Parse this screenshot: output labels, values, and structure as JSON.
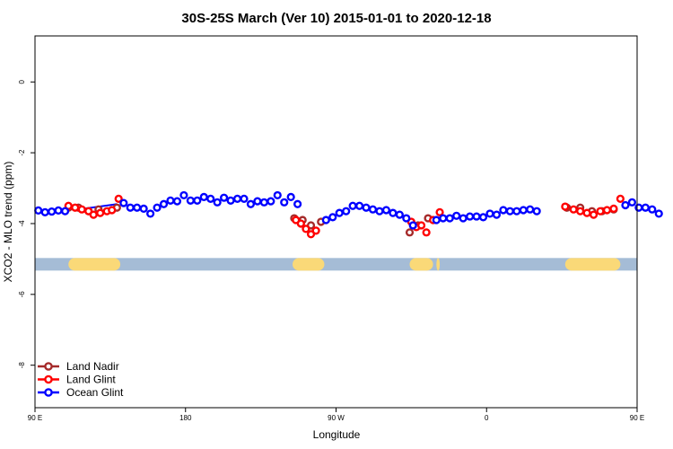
{
  "chart_data": {
    "type": "scatter",
    "title": "30S-25S March (Ver 10)   2015-01-01 to 2020-12-18",
    "xlabel": "Longitude",
    "ylabel": "XCO2 - MLO trend (ppm)",
    "xlim": [
      90,
      450
    ],
    "ylim": [
      -9.2,
      1.3
    ],
    "x_ticks": [
      {
        "value": 90,
        "label": "90 E"
      },
      {
        "value": 180,
        "label": "180"
      },
      {
        "value": 270,
        "label": "90 W"
      },
      {
        "value": 360,
        "label": "0"
      },
      {
        "value": 450,
        "label": "90 E"
      },
      {
        "value": 540,
        "label": "180"
      }
    ],
    "y_ticks": [
      {
        "value": 0,
        "label": "0"
      },
      {
        "value": -2,
        "label": "-2"
      },
      {
        "value": -4,
        "label": "-4"
      },
      {
        "value": -6,
        "label": "-6"
      },
      {
        "value": -8,
        "label": "-8"
      }
    ],
    "grid": false,
    "legend_position": "bottom-left",
    "surface_band": {
      "y": -5.15,
      "ocean_color": "#a5bcd6",
      "land_color": "#fad978",
      "land_ranges": [
        [
          110,
          141
        ],
        [
          244,
          263
        ],
        [
          314,
          328
        ],
        [
          330,
          332
        ],
        [
          407,
          440
        ]
      ]
    },
    "series": [
      {
        "name": "Land Nadir",
        "color": "#a52a2a",
        "points": [
          [
            110,
            -3.55
          ],
          [
            116,
            -3.55
          ],
          [
            122,
            -3.65
          ],
          [
            128,
            -3.6
          ],
          [
            139,
            -3.55
          ],
          [
            245,
            -3.85
          ],
          [
            250,
            -3.9
          ],
          [
            255,
            -4.05
          ],
          [
            261,
            -3.95
          ],
          [
            314,
            -4.25
          ],
          [
            319,
            -4.05
          ],
          [
            325,
            -3.85
          ],
          [
            408,
            -3.55
          ],
          [
            416,
            -3.55
          ],
          [
            423,
            -3.65
          ],
          [
            429,
            -3.65
          ],
          [
            436,
            -3.6
          ]
        ]
      },
      {
        "name": "Land Glint",
        "color": "#ff0000",
        "points": [
          [
            110,
            -3.5
          ],
          [
            114,
            -3.55
          ],
          [
            118,
            -3.6
          ],
          [
            122,
            -3.65
          ],
          [
            125,
            -3.75
          ],
          [
            129,
            -3.7
          ],
          [
            133,
            -3.65
          ],
          [
            136,
            -3.62
          ],
          [
            140,
            -3.3
          ],
          [
            246,
            -3.9
          ],
          [
            249,
            -4.0
          ],
          [
            252,
            -4.15
          ],
          [
            255,
            -4.3
          ],
          [
            258,
            -4.2
          ],
          [
            315,
            -3.95
          ],
          [
            318,
            -4.1
          ],
          [
            321,
            -4.05
          ],
          [
            324,
            -4.25
          ],
          [
            328,
            -3.9
          ],
          [
            332,
            -3.68
          ],
          [
            407,
            -3.52
          ],
          [
            412,
            -3.6
          ],
          [
            416,
            -3.65
          ],
          [
            420,
            -3.7
          ],
          [
            424,
            -3.75
          ],
          [
            428,
            -3.65
          ],
          [
            432,
            -3.62
          ],
          [
            436,
            -3.58
          ],
          [
            440,
            -3.3
          ]
        ]
      },
      {
        "name": "Ocean Glint",
        "color": "#0000ff",
        "points": [
          [
            92,
            -3.63
          ],
          [
            96,
            -3.68
          ],
          [
            100,
            -3.66
          ],
          [
            104,
            -3.63
          ],
          [
            108,
            -3.65
          ],
          [
            143,
            -3.42
          ],
          [
            147,
            -3.55
          ],
          [
            151,
            -3.55
          ],
          [
            155,
            -3.58
          ],
          [
            159,
            -3.72
          ],
          [
            163,
            -3.55
          ],
          [
            167,
            -3.45
          ],
          [
            171,
            -3.35
          ],
          [
            175,
            -3.37
          ],
          [
            179,
            -3.2
          ],
          [
            183,
            -3.35
          ],
          [
            187,
            -3.35
          ],
          [
            191,
            -3.25
          ],
          [
            195,
            -3.3
          ],
          [
            199,
            -3.4
          ],
          [
            203,
            -3.27
          ],
          [
            207,
            -3.35
          ],
          [
            211,
            -3.3
          ],
          [
            215,
            -3.3
          ],
          [
            219,
            -3.45
          ],
          [
            223,
            -3.37
          ],
          [
            227,
            -3.4
          ],
          [
            231,
            -3.37
          ],
          [
            235,
            -3.2
          ],
          [
            239,
            -3.4
          ],
          [
            243,
            -3.25
          ],
          [
            247,
            -3.45
          ],
          [
            264,
            -3.9
          ],
          [
            268,
            -3.82
          ],
          [
            272,
            -3.7
          ],
          [
            276,
            -3.65
          ],
          [
            280,
            -3.5
          ],
          [
            284,
            -3.5
          ],
          [
            288,
            -3.55
          ],
          [
            292,
            -3.6
          ],
          [
            296,
            -3.65
          ],
          [
            300,
            -3.62
          ],
          [
            304,
            -3.7
          ],
          [
            308,
            -3.75
          ],
          [
            312,
            -3.85
          ],
          [
            316,
            -4.05
          ],
          [
            330,
            -3.9
          ],
          [
            334,
            -3.85
          ],
          [
            338,
            -3.85
          ],
          [
            342,
            -3.78
          ],
          [
            346,
            -3.85
          ],
          [
            350,
            -3.8
          ],
          [
            354,
            -3.8
          ],
          [
            358,
            -3.82
          ],
          [
            362,
            -3.72
          ],
          [
            366,
            -3.75
          ],
          [
            370,
            -3.62
          ],
          [
            374,
            -3.65
          ],
          [
            378,
            -3.65
          ],
          [
            382,
            -3.62
          ],
          [
            386,
            -3.6
          ],
          [
            390,
            -3.65
          ],
          [
            443,
            -3.48
          ],
          [
            447,
            -3.4
          ],
          [
            451,
            -3.55
          ],
          [
            455,
            -3.55
          ],
          [
            459,
            -3.6
          ],
          [
            463,
            -3.72
          ]
        ]
      }
    ],
    "line_segments": [
      {
        "color": "#ff0000",
        "from": [
          110,
          -3.55
        ],
        "to": [
          122,
          -3.62
        ]
      },
      {
        "color": "#0000ff",
        "from": [
          116,
          -3.6
        ],
        "to": [
          139,
          -3.45
        ]
      }
    ]
  }
}
